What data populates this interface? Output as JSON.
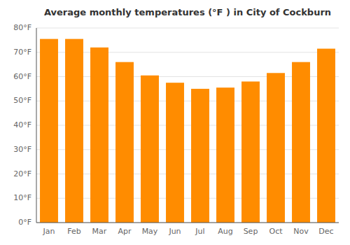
{
  "chart_data": {
    "type": "bar",
    "title": "Average monthly temperatures (°F ) in City of Cockburn",
    "categories": [
      "Jan",
      "Feb",
      "Mar",
      "Apr",
      "May",
      "Jun",
      "Jul",
      "Aug",
      "Sep",
      "Oct",
      "Nov",
      "Dec"
    ],
    "values": [
      75.5,
      75.5,
      72,
      66,
      60.5,
      57.5,
      55,
      55.5,
      58,
      61.5,
      66,
      71.5
    ],
    "color": "#FF8C00",
    "ylim": [
      0,
      80
    ],
    "yticks": [
      {
        "value": 0,
        "label": "0°F"
      },
      {
        "value": 10,
        "label": "10°F"
      },
      {
        "value": 20,
        "label": "20°F"
      },
      {
        "value": 30,
        "label": "30°F"
      },
      {
        "value": 40,
        "label": "40°F"
      },
      {
        "value": 50,
        "label": "50°F"
      },
      {
        "value": 60,
        "label": "60°F"
      },
      {
        "value": 70,
        "label": "70°F"
      },
      {
        "value": 80,
        "label": "80°F"
      }
    ],
    "grid": true
  }
}
